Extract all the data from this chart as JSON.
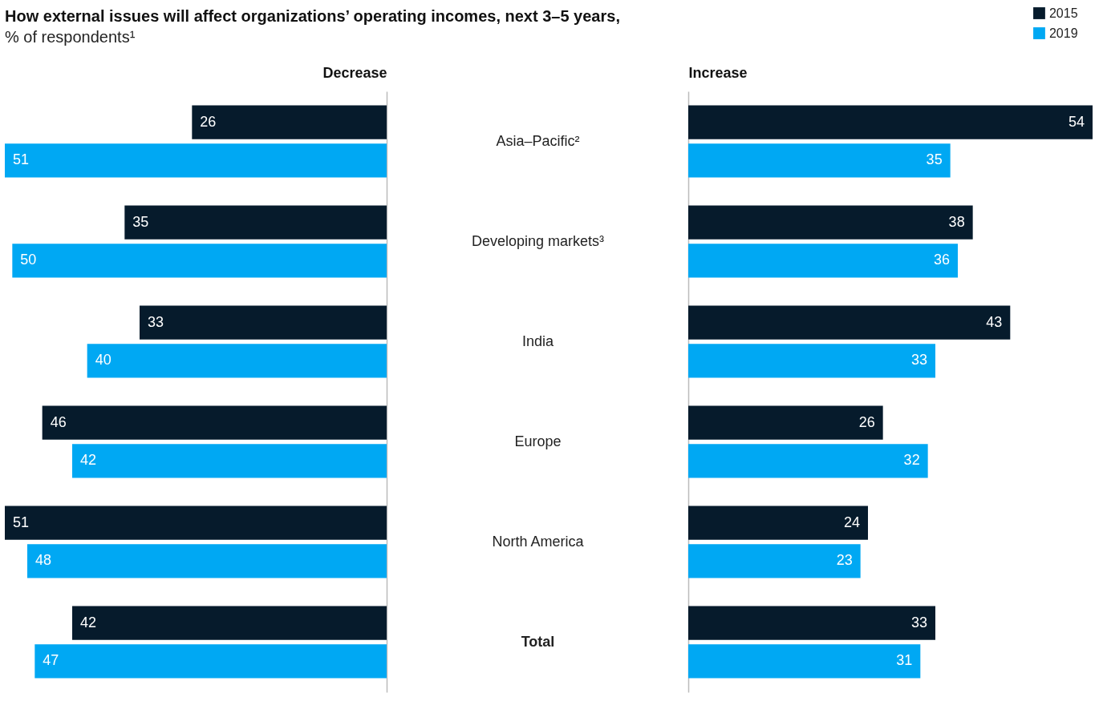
{
  "chart_data": [
    {
      "type": "bar",
      "orientation": "horizontal",
      "title": "How external issues will affect organizations’ operating incomes, next 3–5 years,",
      "subtitle": "% of respondents¹",
      "xlabel": "Decrease",
      "categories": [
        "Asia–Pacific²",
        "Developing markets³",
        "India",
        "Europe",
        "North America",
        "Total"
      ],
      "xlim": [
        51,
        0
      ],
      "tick_labels": "y",
      "data_labels": true,
      "legend": "top right",
      "series": [
        {
          "name": "2015",
          "color": "#061b2c",
          "values": [
            26,
            35,
            33,
            46,
            51,
            42
          ]
        },
        {
          "name": "2019",
          "color": "#00a8f3",
          "values": [
            51,
            50,
            40,
            42,
            48,
            47
          ]
        }
      ]
    },
    {
      "type": "bar",
      "orientation": "horizontal",
      "xlabel": "Increase",
      "categories": [
        null,
        null,
        null,
        null,
        null,
        null
      ],
      "xlim": [
        0,
        54
      ],
      "data_labels": true,
      "legend": "top right",
      "series": [
        {
          "name": "2015",
          "color": "#061b2c",
          "values": [
            54,
            38,
            43,
            26,
            24,
            33
          ]
        },
        {
          "name": "2019",
          "color": "#00a8f3",
          "values": [
            35,
            36,
            33,
            32,
            23,
            31
          ]
        }
      ]
    }
  ]
}
